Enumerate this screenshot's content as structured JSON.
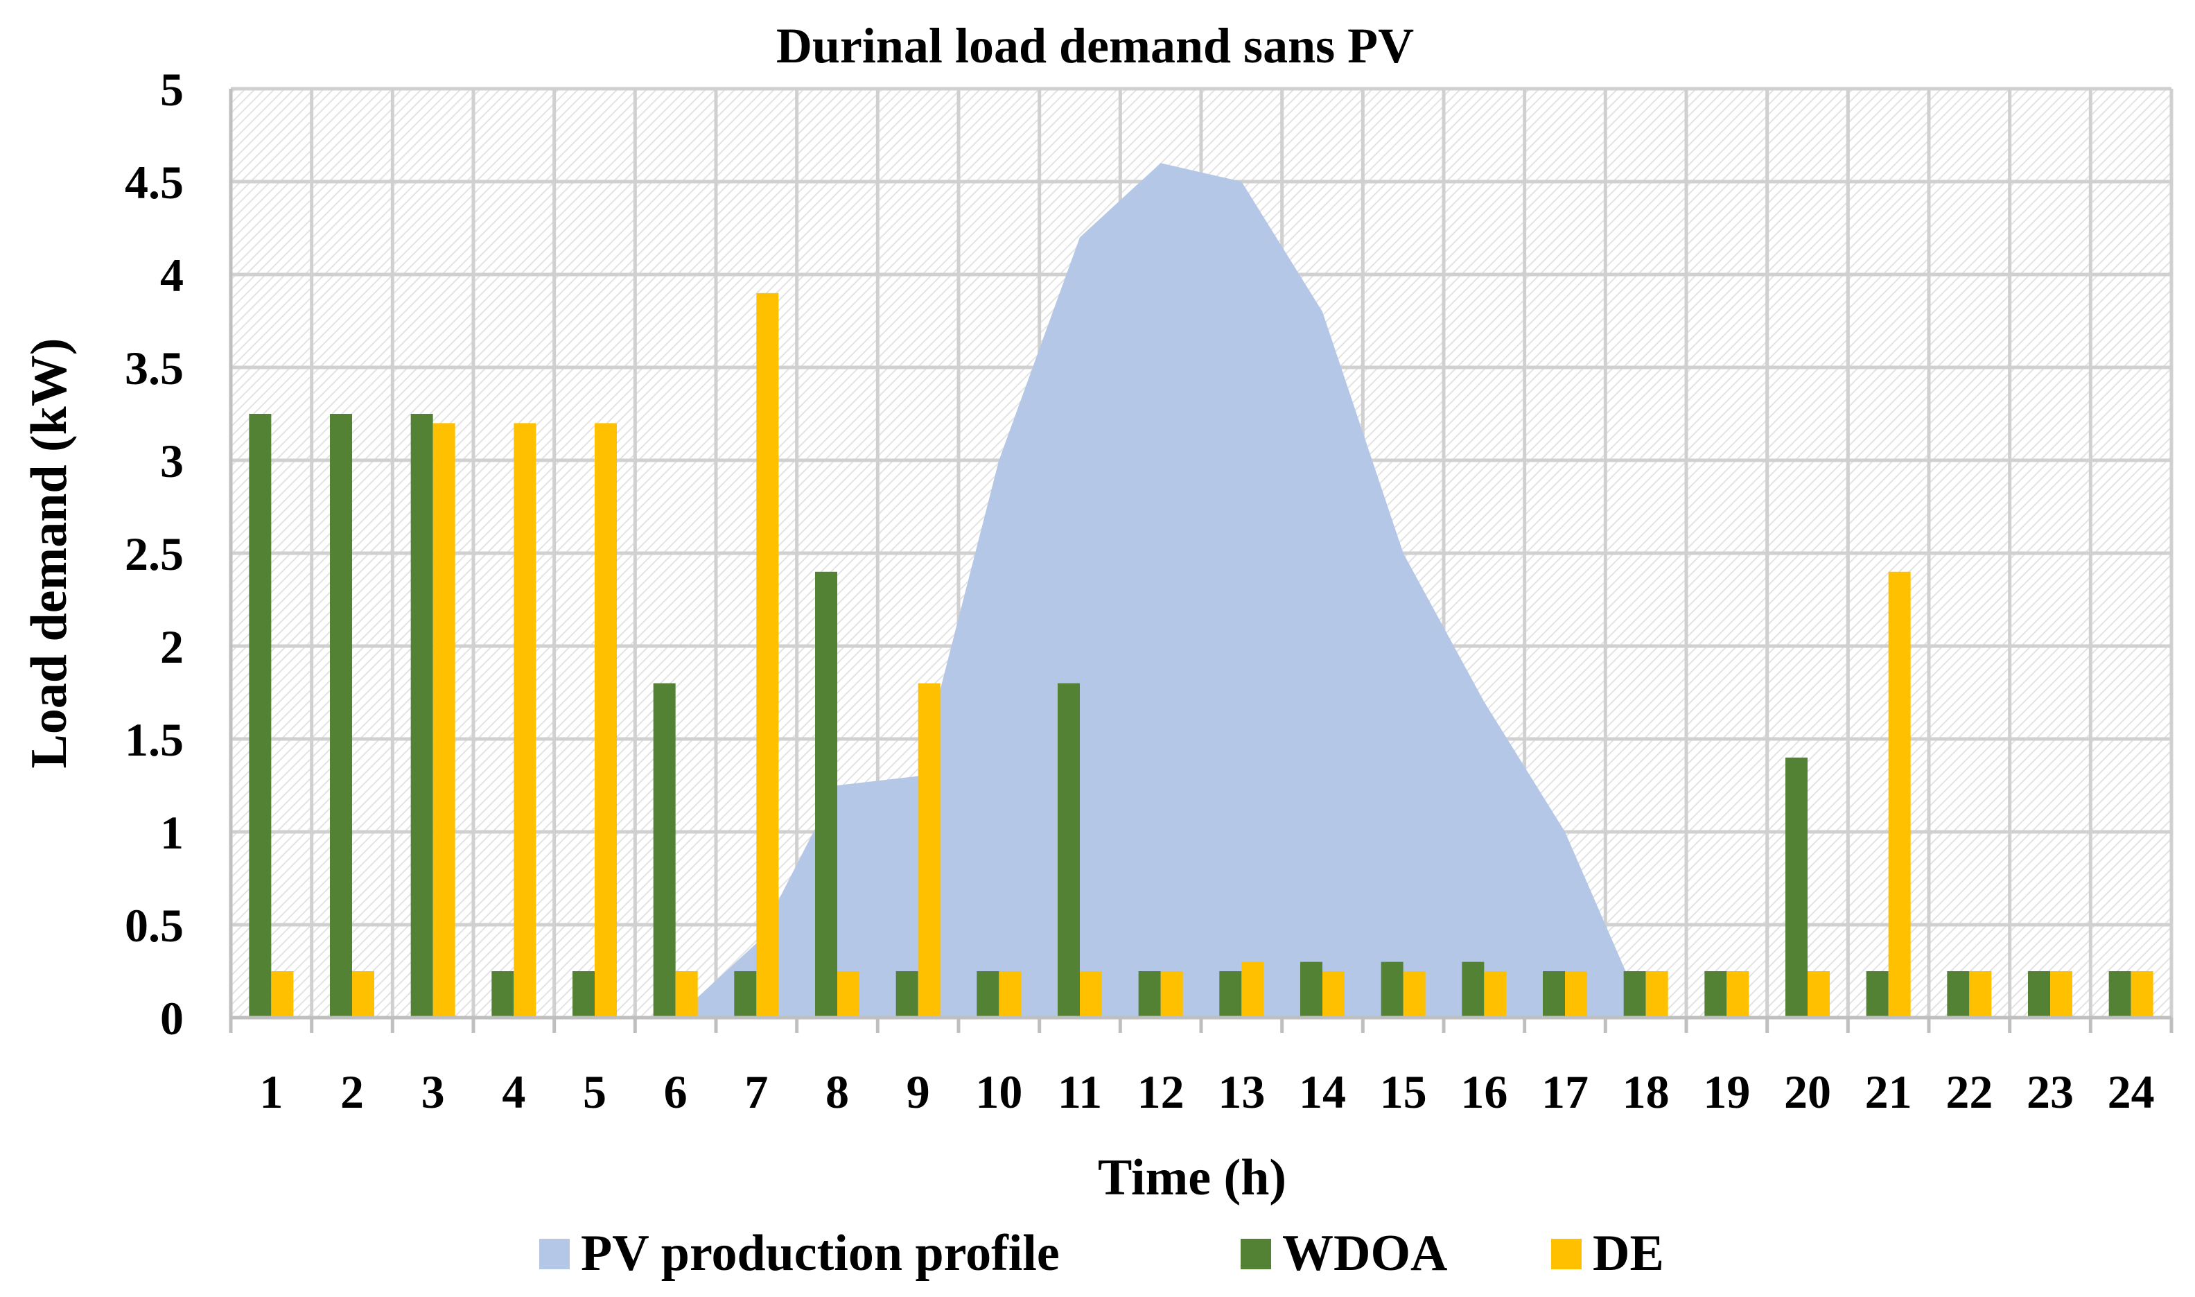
{
  "chart_data": {
    "type": "bar",
    "title": "Durinal load demand sans PV",
    "xlabel": "Time (h)",
    "ylabel": "Load demand (kW)",
    "ylim": [
      0,
      5
    ],
    "grid": true,
    "legend_position": "bottom",
    "categories": [
      "1",
      "2",
      "3",
      "4",
      "5",
      "6",
      "7",
      "8",
      "9",
      "10",
      "11",
      "12",
      "13",
      "14",
      "15",
      "16",
      "17",
      "18",
      "19",
      "20",
      "21",
      "22",
      "23",
      "24"
    ],
    "y_ticks": [
      "0",
      "0.5",
      "1",
      "1.5",
      "2",
      "2.5",
      "3",
      "3.5",
      "4",
      "4.5",
      "5"
    ],
    "y_tick_values": [
      0,
      0.5,
      1,
      1.5,
      2,
      2.5,
      3,
      3.5,
      4,
      4.5,
      5
    ],
    "area_series": {
      "name": "PV production profile",
      "color": "#b4c7e7",
      "x": [
        6,
        7,
        8,
        9,
        10,
        11,
        12,
        13,
        14,
        15,
        16,
        17,
        18
      ],
      "values": [
        0,
        0.4,
        1.25,
        1.3,
        3.0,
        4.2,
        4.6,
        4.5,
        3.8,
        2.5,
        1.7,
        1.0,
        0
      ]
    },
    "series": [
      {
        "name": "WDOA",
        "color": "#548235",
        "values": [
          3.25,
          3.25,
          3.25,
          0.25,
          0.25,
          1.8,
          0.25,
          2.4,
          0.25,
          0.25,
          1.8,
          0.25,
          0.25,
          0.3,
          0.3,
          0.3,
          0.25,
          0.25,
          0.25,
          1.4,
          0.25,
          0.25,
          0.25,
          0.25
        ]
      },
      {
        "name": "DE",
        "color": "#ffc000",
        "values": [
          0.25,
          0.25,
          3.2,
          3.2,
          3.2,
          0.25,
          3.9,
          0.25,
          1.8,
          0.25,
          0.25,
          0.25,
          0.3,
          0.25,
          0.25,
          0.25,
          0.25,
          0.25,
          0.25,
          0.25,
          2.4,
          0.25,
          0.25,
          0.25
        ]
      }
    ]
  }
}
